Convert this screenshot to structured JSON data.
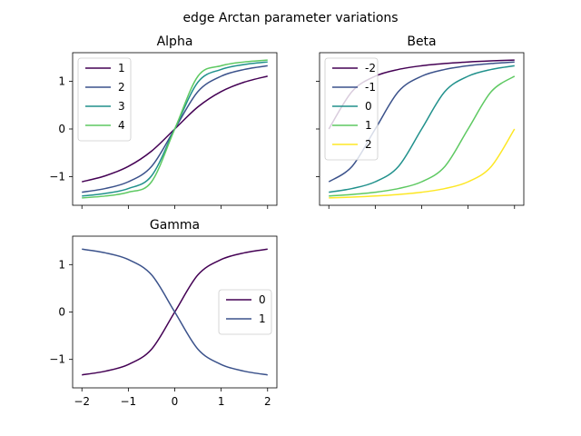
{
  "figure": {
    "title": "edge Arctan parameter variations"
  },
  "chart_data": [
    {
      "type": "line",
      "id": "alpha",
      "title": "Alpha",
      "xlabel": "",
      "ylabel": "",
      "xlim": [
        -2.2,
        2.2
      ],
      "ylim": [
        -1.6,
        1.6
      ],
      "xticks": [
        -2,
        -1,
        0,
        1,
        2
      ],
      "xtick_labels": [
        "",
        "",
        "",
        "",
        ""
      ],
      "yticks": [
        -1,
        0,
        1
      ],
      "ytick_labels": [
        "−1",
        "0",
        "1"
      ],
      "legend": "top-left",
      "series": [
        {
          "name": "1",
          "color": "#440154",
          "x": [
            -2,
            -1.5,
            -1,
            -0.5,
            0,
            0.5,
            1,
            1.5,
            2
          ],
          "y": [
            -1.107,
            -0.983,
            -0.785,
            -0.464,
            0,
            0.464,
            0.785,
            0.983,
            1.107
          ]
        },
        {
          "name": "2",
          "color": "#3b528b",
          "x": [
            -2,
            -1.5,
            -1,
            -0.5,
            0,
            0.5,
            1,
            1.5,
            2
          ],
          "y": [
            -1.326,
            -1.249,
            -1.107,
            -0.785,
            0,
            0.785,
            1.107,
            1.249,
            1.326
          ]
        },
        {
          "name": "3",
          "color": "#21918c",
          "x": [
            -2,
            -1.5,
            -1,
            -0.5,
            0,
            0.5,
            1,
            1.5,
            2
          ],
          "y": [
            -1.406,
            -1.352,
            -1.249,
            -0.983,
            0,
            0.983,
            1.249,
            1.352,
            1.406
          ]
        },
        {
          "name": "4",
          "color": "#5ec962",
          "x": [
            -2,
            -1.5,
            -1,
            -0.5,
            0,
            0.5,
            1,
            1.5,
            2
          ],
          "y": [
            -1.446,
            -1.406,
            -1.326,
            -1.107,
            0,
            1.107,
            1.326,
            1.406,
            1.446
          ]
        }
      ]
    },
    {
      "type": "line",
      "id": "beta",
      "title": "Beta",
      "xlabel": "",
      "ylabel": "",
      "xlim": [
        -2.2,
        2.2
      ],
      "ylim": [
        -1.6,
        1.6
      ],
      "xticks": [
        -2,
        -1,
        0,
        1,
        2
      ],
      "xtick_labels": [
        "",
        "",
        "",
        "",
        ""
      ],
      "yticks": [
        -1,
        0,
        1
      ],
      "ytick_labels": [
        "",
        "",
        ""
      ],
      "legend": "top-left",
      "series": [
        {
          "name": "-2",
          "color": "#440154",
          "x": [
            -2,
            -1.5,
            -1,
            -0.5,
            0,
            0.5,
            1,
            1.5,
            2
          ],
          "y": [
            0,
            0.785,
            1.107,
            1.249,
            1.326,
            1.373,
            1.406,
            1.429,
            1.446
          ]
        },
        {
          "name": "-1",
          "color": "#3b528b",
          "x": [
            -2,
            -1.5,
            -1,
            -0.5,
            0,
            0.5,
            1,
            1.5,
            2
          ],
          "y": [
            -1.107,
            -0.785,
            0,
            0.785,
            1.107,
            1.249,
            1.326,
            1.373,
            1.406
          ]
        },
        {
          "name": "0",
          "color": "#21918c",
          "x": [
            -2,
            -1.5,
            -1,
            -0.5,
            0,
            0.5,
            1,
            1.5,
            2
          ],
          "y": [
            -1.326,
            -1.249,
            -1.107,
            -0.785,
            0,
            0.785,
            1.107,
            1.249,
            1.326
          ]
        },
        {
          "name": "1",
          "color": "#5ec962",
          "x": [
            -2,
            -1.5,
            -1,
            -0.5,
            0,
            0.5,
            1,
            1.5,
            2
          ],
          "y": [
            -1.406,
            -1.373,
            -1.326,
            -1.249,
            -1.107,
            -0.785,
            0,
            0.785,
            1.107
          ]
        },
        {
          "name": "2",
          "color": "#fde725",
          "x": [
            -2,
            -1.5,
            -1,
            -0.5,
            0,
            0.5,
            1,
            1.5,
            2
          ],
          "y": [
            -1.446,
            -1.429,
            -1.406,
            -1.373,
            -1.326,
            -1.249,
            -1.107,
            -0.785,
            0
          ]
        }
      ]
    },
    {
      "type": "line",
      "id": "gamma",
      "title": "Gamma",
      "xlabel": "",
      "ylabel": "",
      "xlim": [
        -2.2,
        2.2
      ],
      "ylim": [
        -1.6,
        1.6
      ],
      "xticks": [
        -2,
        -1,
        0,
        1,
        2
      ],
      "xtick_labels": [
        "−2",
        "−1",
        "0",
        "1",
        "2"
      ],
      "yticks": [
        -1,
        0,
        1
      ],
      "ytick_labels": [
        "−1",
        "0",
        "1"
      ],
      "legend": "center-right",
      "series": [
        {
          "name": "0",
          "color": "#440154",
          "x": [
            -2,
            -1.5,
            -1,
            -0.5,
            0,
            0.5,
            1,
            1.5,
            2
          ],
          "y": [
            -1.326,
            -1.249,
            -1.107,
            -0.785,
            0,
            0.785,
            1.107,
            1.249,
            1.326
          ]
        },
        {
          "name": "1",
          "color": "#3b528b",
          "x": [
            -2,
            -1.5,
            -1,
            -0.5,
            0,
            0.5,
            1,
            1.5,
            2
          ],
          "y": [
            1.326,
            1.249,
            1.107,
            0.785,
            0,
            -0.785,
            -1.107,
            -1.249,
            -1.326
          ]
        }
      ]
    }
  ]
}
